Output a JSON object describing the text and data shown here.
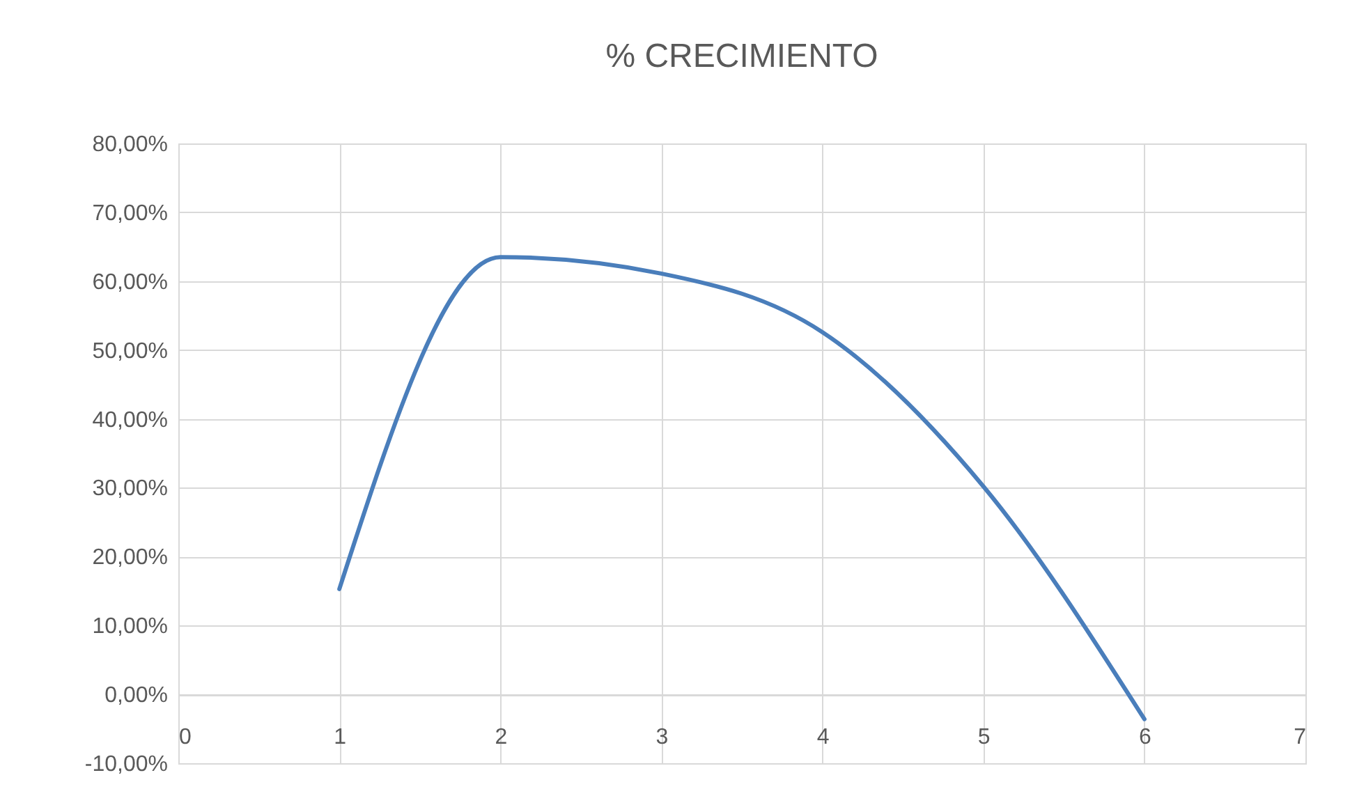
{
  "chart_data": {
    "type": "line",
    "title": "% CRECIMIENTO",
    "x": [
      1,
      2,
      3,
      4,
      5,
      6
    ],
    "series": [
      {
        "color": "#4a7ebb",
        "values": [
          15.3,
          63.5,
          61.1,
          52.6,
          30.2,
          -3.6
        ]
      }
    ],
    "xlim": [
      0,
      7
    ],
    "xticks": [
      0,
      1,
      2,
      3,
      4,
      5,
      6,
      7
    ],
    "ylim": [
      -10,
      80
    ],
    "yticks": [
      {
        "value": -10,
        "label": "-10,00%"
      },
      {
        "value": 0,
        "label": "0,00%"
      },
      {
        "value": 10,
        "label": "10,00%"
      },
      {
        "value": 20,
        "label": "20,00%"
      },
      {
        "value": 30,
        "label": "30,00%"
      },
      {
        "value": 40,
        "label": "40,00%"
      },
      {
        "value": 50,
        "label": "50,00%"
      },
      {
        "value": 60,
        "label": "60,00%"
      },
      {
        "value": 70,
        "label": "70,00%"
      },
      {
        "value": 80,
        "label": "80,00%"
      }
    ],
    "grid": true,
    "marker": "none",
    "line_style": "solid"
  }
}
